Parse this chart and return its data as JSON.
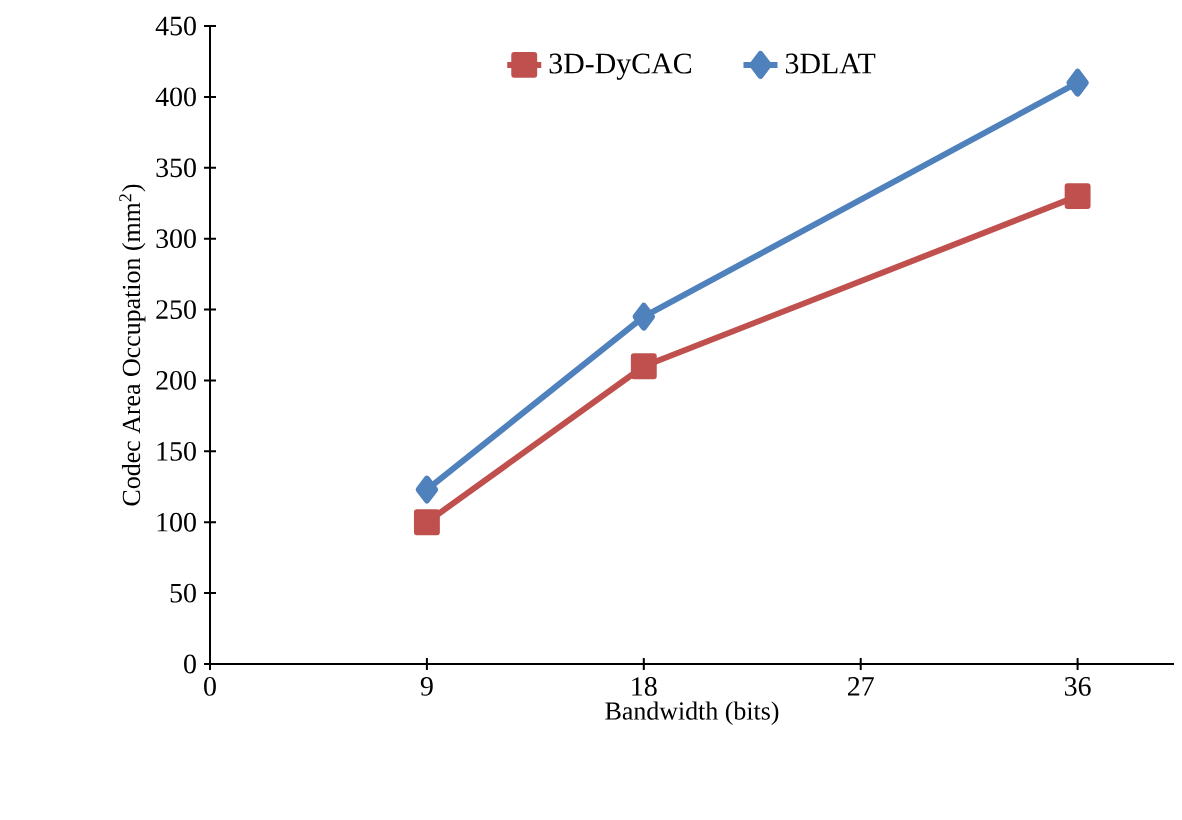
{
  "chart_data": {
    "type": "line",
    "xlabel": "Bandwidth (bits)",
    "ylabel": "Codec Area Occupation  (mm$^{2}$)",
    "x": [
      9,
      18,
      36
    ],
    "series": [
      {
        "name": "3D-DyCAC",
        "color": "#c0504d",
        "marker": "square",
        "values": [
          100,
          210,
          330
        ]
      },
      {
        "name": "3DLAT",
        "color": "#4f81bd",
        "marker": "diamond",
        "values": [
          123,
          245,
          410
        ]
      }
    ],
    "xlim": [
      0,
      40
    ],
    "xticks": [
      0,
      9,
      18,
      27,
      36
    ],
    "ylim": [
      0,
      450
    ],
    "yticks": [
      0,
      50,
      100,
      150,
      200,
      250,
      300,
      350,
      400,
      450
    ],
    "grid": false,
    "legend": "top",
    "line_style": "solid"
  }
}
